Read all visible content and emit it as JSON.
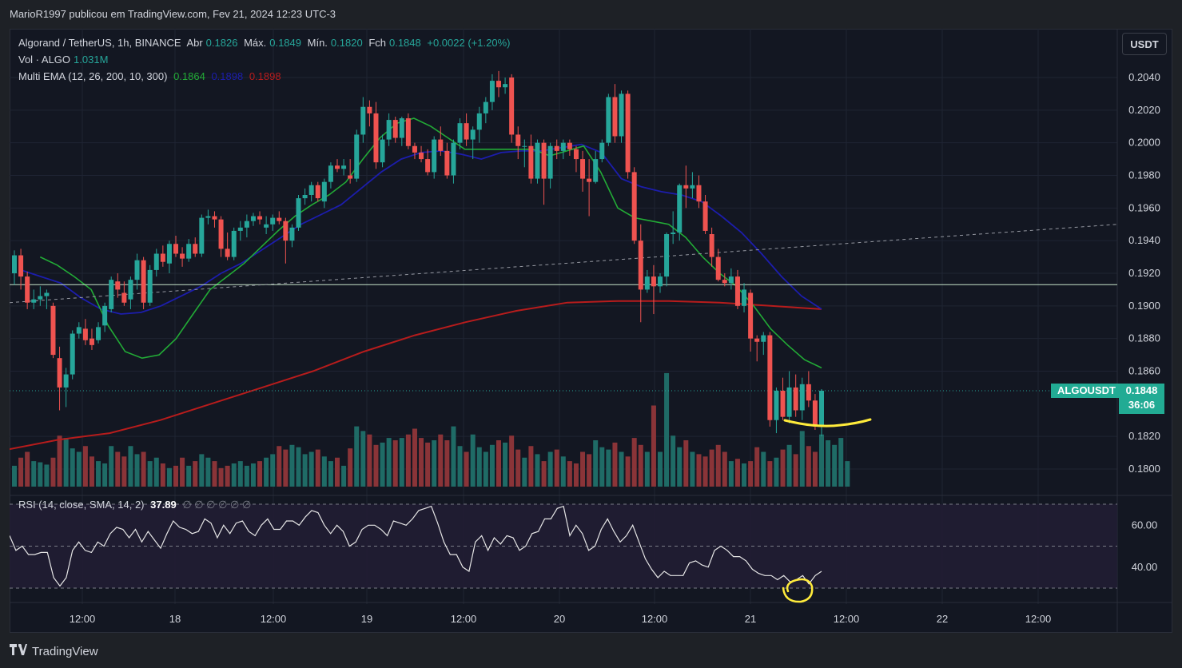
{
  "header": {
    "publisher": "MarioR1997 publicou em TradingView.com, Fev 21, 2024 12:23 UTC-3"
  },
  "legend": {
    "symbol": "Algorand / TetherUS, 1h, BINANCE",
    "open_label": "Abr",
    "open": "0.1826",
    "high_label": "Máx.",
    "high": "0.1849",
    "low_label": "Mín.",
    "low": "0.1820",
    "close_label": "Fch",
    "close": "0.1848",
    "change": "+0.0022 (+1.20%)",
    "vol_label": "Vol · ALGO",
    "vol": "1.031M",
    "ema_label": "Multi EMA (12, 26, 200, 10, 300)",
    "ema_values": [
      "0.1864",
      "0.1898",
      "0.1898"
    ],
    "rsi_label": "RSI (14, close, SMA, 14, 2)",
    "rsi_value": "37.89",
    "rsi_extra": "∅ ∅ ∅ ∅ ∅ ∅"
  },
  "currency": "USDT",
  "price_label": {
    "ticker": "ALGOUSDT",
    "price": "0.1848",
    "countdown": "36:06"
  },
  "footer": {
    "brand": "TradingView"
  },
  "colors": {
    "up": "#26a69a",
    "down": "#ef5350",
    "ema_fast": "#22ab36",
    "ema_mid": "#1c1dac",
    "ema_slow": "#b71c1c",
    "marker": "#ffeb3b"
  },
  "chart_data": {
    "type": "candlestick",
    "timeframe": "1h",
    "ylim": [
      0.179,
      0.205
    ],
    "y_ticks": [
      "0.2040",
      "0.2020",
      "0.2000",
      "0.1980",
      "0.1960",
      "0.1940",
      "0.1920",
      "0.1900",
      "0.1880",
      "0.1860",
      "0.1820",
      "0.1800"
    ],
    "x_ticks": [
      "12:00",
      "18",
      "12:00",
      "19",
      "12:00",
      "20",
      "12:00",
      "21",
      "12:00",
      "22",
      "12:00"
    ],
    "candles": [
      {
        "o": 0.192,
        "h": 0.1934,
        "l": 0.1913,
        "c": 0.1931
      },
      {
        "o": 0.1931,
        "h": 0.1935,
        "l": 0.191,
        "c": 0.1918
      },
      {
        "o": 0.1918,
        "h": 0.1921,
        "l": 0.1898,
        "c": 0.1902
      },
      {
        "o": 0.1902,
        "h": 0.191,
        "l": 0.1898,
        "c": 0.1904
      },
      {
        "o": 0.1904,
        "h": 0.1912,
        "l": 0.19,
        "c": 0.1906
      },
      {
        "o": 0.1906,
        "h": 0.191,
        "l": 0.1898,
        "c": 0.1908
      },
      {
        "o": 0.19,
        "h": 0.1902,
        "l": 0.1868,
        "c": 0.187
      },
      {
        "o": 0.1868,
        "h": 0.1875,
        "l": 0.1836,
        "c": 0.185
      },
      {
        "o": 0.185,
        "h": 0.1862,
        "l": 0.1838,
        "c": 0.1858
      },
      {
        "o": 0.1858,
        "h": 0.1885,
        "l": 0.1855,
        "c": 0.1883
      },
      {
        "o": 0.1883,
        "h": 0.189,
        "l": 0.188,
        "c": 0.1887
      },
      {
        "o": 0.1886,
        "h": 0.1892,
        "l": 0.1876,
        "c": 0.1879
      },
      {
        "o": 0.188,
        "h": 0.1886,
        "l": 0.1873,
        "c": 0.1876
      },
      {
        "o": 0.1879,
        "h": 0.189,
        "l": 0.1877,
        "c": 0.1887
      },
      {
        "o": 0.1888,
        "h": 0.1902,
        "l": 0.1884,
        "c": 0.19
      },
      {
        "o": 0.1898,
        "h": 0.1918,
        "l": 0.1896,
        "c": 0.1916
      },
      {
        "o": 0.1915,
        "h": 0.192,
        "l": 0.1905,
        "c": 0.191
      },
      {
        "o": 0.1908,
        "h": 0.1915,
        "l": 0.19,
        "c": 0.1902
      },
      {
        "o": 0.1904,
        "h": 0.1918,
        "l": 0.1898,
        "c": 0.1916
      },
      {
        "o": 0.1916,
        "h": 0.1932,
        "l": 0.191,
        "c": 0.1928
      },
      {
        "o": 0.1928,
        "h": 0.193,
        "l": 0.1898,
        "c": 0.1902
      },
      {
        "o": 0.1902,
        "h": 0.1925,
        "l": 0.19,
        "c": 0.1922
      },
      {
        "o": 0.1922,
        "h": 0.1935,
        "l": 0.1918,
        "c": 0.1932
      },
      {
        "o": 0.1932,
        "h": 0.1937,
        "l": 0.1924,
        "c": 0.1927
      },
      {
        "o": 0.1926,
        "h": 0.194,
        "l": 0.192,
        "c": 0.1938
      },
      {
        "o": 0.1938,
        "h": 0.1943,
        "l": 0.193,
        "c": 0.1932
      },
      {
        "o": 0.1932,
        "h": 0.1936,
        "l": 0.1924,
        "c": 0.1929
      },
      {
        "o": 0.1929,
        "h": 0.1941,
        "l": 0.1927,
        "c": 0.1938
      },
      {
        "o": 0.1938,
        "h": 0.1942,
        "l": 0.193,
        "c": 0.1932
      },
      {
        "o": 0.1932,
        "h": 0.1956,
        "l": 0.193,
        "c": 0.1954
      },
      {
        "o": 0.1954,
        "h": 0.1959,
        "l": 0.195,
        "c": 0.1955
      },
      {
        "o": 0.1955,
        "h": 0.1958,
        "l": 0.1948,
        "c": 0.1953
      },
      {
        "o": 0.1953,
        "h": 0.1955,
        "l": 0.193,
        "c": 0.1935
      },
      {
        "o": 0.1935,
        "h": 0.1945,
        "l": 0.1928,
        "c": 0.193
      },
      {
        "o": 0.193,
        "h": 0.1948,
        "l": 0.1928,
        "c": 0.1946
      },
      {
        "o": 0.1946,
        "h": 0.1952,
        "l": 0.194,
        "c": 0.1948
      },
      {
        "o": 0.1948,
        "h": 0.1956,
        "l": 0.1942,
        "c": 0.1952
      },
      {
        "o": 0.1952,
        "h": 0.1957,
        "l": 0.1949,
        "c": 0.1955
      },
      {
        "o": 0.1955,
        "h": 0.1958,
        "l": 0.195,
        "c": 0.1953
      },
      {
        "o": 0.1948,
        "h": 0.1955,
        "l": 0.1944,
        "c": 0.195
      },
      {
        "o": 0.195,
        "h": 0.1956,
        "l": 0.1946,
        "c": 0.1954
      },
      {
        "o": 0.1954,
        "h": 0.1958,
        "l": 0.195,
        "c": 0.1952
      },
      {
        "o": 0.1952,
        "h": 0.1954,
        "l": 0.1926,
        "c": 0.194
      },
      {
        "o": 0.194,
        "h": 0.195,
        "l": 0.1936,
        "c": 0.1948
      },
      {
        "o": 0.1948,
        "h": 0.1968,
        "l": 0.1946,
        "c": 0.1966
      },
      {
        "o": 0.1966,
        "h": 0.1972,
        "l": 0.1962,
        "c": 0.1968
      },
      {
        "o": 0.1968,
        "h": 0.1976,
        "l": 0.1964,
        "c": 0.1974
      },
      {
        "o": 0.1974,
        "h": 0.1976,
        "l": 0.1964,
        "c": 0.1966
      },
      {
        "o": 0.1964,
        "h": 0.1978,
        "l": 0.196,
        "c": 0.1976
      },
      {
        "o": 0.1976,
        "h": 0.1988,
        "l": 0.1972,
        "c": 0.1986
      },
      {
        "o": 0.1986,
        "h": 0.199,
        "l": 0.1982,
        "c": 0.1984
      },
      {
        "o": 0.1984,
        "h": 0.199,
        "l": 0.198,
        "c": 0.1986
      },
      {
        "o": 0.198,
        "h": 0.199,
        "l": 0.1975,
        "c": 0.1978
      },
      {
        "o": 0.1978,
        "h": 0.2008,
        "l": 0.1976,
        "c": 0.2005
      },
      {
        "o": 0.2005,
        "h": 0.2028,
        "l": 0.2,
        "c": 0.2022
      },
      {
        "o": 0.2022,
        "h": 0.2026,
        "l": 0.201,
        "c": 0.2018
      },
      {
        "o": 0.2018,
        "h": 0.2025,
        "l": 0.1984,
        "c": 0.1988
      },
      {
        "o": 0.1988,
        "h": 0.2005,
        "l": 0.1985,
        "c": 0.2002
      },
      {
        "o": 0.2002,
        "h": 0.2018,
        "l": 0.1998,
        "c": 0.2014
      },
      {
        "o": 0.2014,
        "h": 0.2016,
        "l": 0.2,
        "c": 0.2003
      },
      {
        "o": 0.2003,
        "h": 0.2016,
        "l": 0.1998,
        "c": 0.2015
      },
      {
        "o": 0.2015,
        "h": 0.2018,
        "l": 0.1996,
        "c": 0.1998
      },
      {
        "o": 0.1998,
        "h": 0.2,
        "l": 0.199,
        "c": 0.1994
      },
      {
        "o": 0.1994,
        "h": 0.1998,
        "l": 0.1988,
        "c": 0.199
      },
      {
        "o": 0.199,
        "h": 0.1996,
        "l": 0.198,
        "c": 0.1982
      },
      {
        "o": 0.1982,
        "h": 0.2004,
        "l": 0.1978,
        "c": 0.2002
      },
      {
        "o": 0.2002,
        "h": 0.201,
        "l": 0.1992,
        "c": 0.1995
      },
      {
        "o": 0.1995,
        "h": 0.2,
        "l": 0.1978,
        "c": 0.198
      },
      {
        "o": 0.198,
        "h": 0.2002,
        "l": 0.1975,
        "c": 0.2
      },
      {
        "o": 0.2,
        "h": 0.2015,
        "l": 0.1996,
        "c": 0.2012
      },
      {
        "o": 0.2012,
        "h": 0.2018,
        "l": 0.1998,
        "c": 0.2002
      },
      {
        "o": 0.2002,
        "h": 0.201,
        "l": 0.199,
        "c": 0.2008
      },
      {
        "o": 0.2008,
        "h": 0.2022,
        "l": 0.2,
        "c": 0.2018
      },
      {
        "o": 0.2018,
        "h": 0.2028,
        "l": 0.2012,
        "c": 0.2025
      },
      {
        "o": 0.2025,
        "h": 0.2042,
        "l": 0.202,
        "c": 0.2038
      },
      {
        "o": 0.2038,
        "h": 0.2044,
        "l": 0.2028,
        "c": 0.2034
      },
      {
        "o": 0.2034,
        "h": 0.204,
        "l": 0.203,
        "c": 0.2036
      },
      {
        "o": 0.204,
        "h": 0.2042,
        "l": 0.2,
        "c": 0.2005
      },
      {
        "o": 0.2005,
        "h": 0.201,
        "l": 0.199,
        "c": 0.1998
      },
      {
        "o": 0.1998,
        "h": 0.2002,
        "l": 0.1985,
        "c": 0.1998
      },
      {
        "o": 0.1998,
        "h": 0.2005,
        "l": 0.1975,
        "c": 0.1978
      },
      {
        "o": 0.1978,
        "h": 0.2002,
        "l": 0.1975,
        "c": 0.2
      },
      {
        "o": 0.2,
        "h": 0.2002,
        "l": 0.1962,
        "c": 0.1978
      },
      {
        "o": 0.1978,
        "h": 0.2,
        "l": 0.1972,
        "c": 0.1998
      },
      {
        "o": 0.1998,
        "h": 0.2002,
        "l": 0.199,
        "c": 0.1995
      },
      {
        "o": 0.1995,
        "h": 0.2002,
        "l": 0.199,
        "c": 0.2
      },
      {
        "o": 0.2,
        "h": 0.2002,
        "l": 0.1992,
        "c": 0.1996
      },
      {
        "o": 0.1996,
        "h": 0.1998,
        "l": 0.1982,
        "c": 0.199
      },
      {
        "o": 0.199,
        "h": 0.1995,
        "l": 0.197,
        "c": 0.1978
      },
      {
        "o": 0.1978,
        "h": 0.199,
        "l": 0.1955,
        "c": 0.1976
      },
      {
        "o": 0.1976,
        "h": 0.1995,
        "l": 0.1975,
        "c": 0.199
      },
      {
        "o": 0.199,
        "h": 0.2002,
        "l": 0.1988,
        "c": 0.2
      },
      {
        "o": 0.2,
        "h": 0.203,
        "l": 0.1998,
        "c": 0.2028
      },
      {
        "o": 0.2028,
        "h": 0.2036,
        "l": 0.2,
        "c": 0.2004
      },
      {
        "o": 0.2004,
        "h": 0.2032,
        "l": 0.2,
        "c": 0.203
      },
      {
        "o": 0.203,
        "h": 0.2032,
        "l": 0.1978,
        "c": 0.1982
      },
      {
        "o": 0.1982,
        "h": 0.1985,
        "l": 0.1938,
        "c": 0.194
      },
      {
        "o": 0.194,
        "h": 0.195,
        "l": 0.189,
        "c": 0.191
      },
      {
        "o": 0.191,
        "h": 0.1922,
        "l": 0.1908,
        "c": 0.1918
      },
      {
        "o": 0.1918,
        "h": 0.1925,
        "l": 0.1895,
        "c": 0.1912
      },
      {
        "o": 0.1912,
        "h": 0.192,
        "l": 0.1908,
        "c": 0.1918
      },
      {
        "o": 0.1918,
        "h": 0.1945,
        "l": 0.1912,
        "c": 0.1944
      },
      {
        "o": 0.1944,
        "h": 0.1958,
        "l": 0.1938,
        "c": 0.1945
      },
      {
        "o": 0.1945,
        "h": 0.1975,
        "l": 0.194,
        "c": 0.1974
      },
      {
        "o": 0.1974,
        "h": 0.1986,
        "l": 0.196,
        "c": 0.1972
      },
      {
        "o": 0.1972,
        "h": 0.1982,
        "l": 0.1966,
        "c": 0.1974
      },
      {
        "o": 0.1974,
        "h": 0.198,
        "l": 0.196,
        "c": 0.1964
      },
      {
        "o": 0.1964,
        "h": 0.1968,
        "l": 0.1944,
        "c": 0.1946
      },
      {
        "o": 0.1944,
        "h": 0.1948,
        "l": 0.1924,
        "c": 0.193
      },
      {
        "o": 0.193,
        "h": 0.1935,
        "l": 0.1915,
        "c": 0.1916
      },
      {
        "o": 0.1916,
        "h": 0.192,
        "l": 0.1912,
        "c": 0.1914
      },
      {
        "o": 0.1914,
        "h": 0.1923,
        "l": 0.191,
        "c": 0.1918
      },
      {
        "o": 0.1918,
        "h": 0.1922,
        "l": 0.1898,
        "c": 0.19
      },
      {
        "o": 0.19,
        "h": 0.1914,
        "l": 0.1896,
        "c": 0.191
      },
      {
        "o": 0.1908,
        "h": 0.191,
        "l": 0.1872,
        "c": 0.188
      },
      {
        "o": 0.188,
        "h": 0.1882,
        "l": 0.1866,
        "c": 0.1878
      },
      {
        "o": 0.1878,
        "h": 0.1884,
        "l": 0.187,
        "c": 0.1882
      },
      {
        "o": 0.1882,
        "h": 0.1884,
        "l": 0.1826,
        "c": 0.183
      },
      {
        "o": 0.183,
        "h": 0.185,
        "l": 0.1822,
        "c": 0.1848
      },
      {
        "o": 0.1848,
        "h": 0.1856,
        "l": 0.183,
        "c": 0.1832
      },
      {
        "o": 0.1832,
        "h": 0.186,
        "l": 0.1828,
        "c": 0.185
      },
      {
        "o": 0.185,
        "h": 0.1858,
        "l": 0.1832,
        "c": 0.1836
      },
      {
        "o": 0.1836,
        "h": 0.1856,
        "l": 0.183,
        "c": 0.1852
      },
      {
        "o": 0.1852,
        "h": 0.186,
        "l": 0.1838,
        "c": 0.1842
      },
      {
        "o": 0.1842,
        "h": 0.1846,
        "l": 0.1824,
        "c": 0.1826
      },
      {
        "o": 0.1826,
        "h": 0.1849,
        "l": 0.182,
        "c": 0.1848
      }
    ],
    "volume": [
      0.18,
      0.25,
      0.3,
      0.22,
      0.21,
      0.19,
      0.25,
      0.44,
      0.42,
      0.33,
      0.3,
      0.35,
      0.26,
      0.22,
      0.2,
      0.35,
      0.3,
      0.26,
      0.35,
      0.28,
      0.3,
      0.22,
      0.25,
      0.2,
      0.16,
      0.18,
      0.25,
      0.18,
      0.22,
      0.28,
      0.25,
      0.22,
      0.16,
      0.18,
      0.2,
      0.22,
      0.18,
      0.2,
      0.22,
      0.25,
      0.28,
      0.35,
      0.32,
      0.36,
      0.34,
      0.28,
      0.3,
      0.32,
      0.26,
      0.22,
      0.25,
      0.18,
      0.33,
      0.52,
      0.48,
      0.45,
      0.36,
      0.38,
      0.42,
      0.4,
      0.42,
      0.45,
      0.5,
      0.42,
      0.38,
      0.4,
      0.45,
      0.4,
      0.52,
      0.35,
      0.3,
      0.45,
      0.34,
      0.3,
      0.36,
      0.4,
      0.38,
      0.44,
      0.32,
      0.25,
      0.35,
      0.28,
      0.22,
      0.3,
      0.32,
      0.26,
      0.22,
      0.2,
      0.3,
      0.28,
      0.4,
      0.34,
      0.32,
      0.38,
      0.3,
      0.26,
      0.42,
      0.36,
      0.3,
      0.7,
      0.3,
      0.98,
      0.44,
      0.34,
      0.4,
      0.3,
      0.28,
      0.26,
      0.32,
      0.36,
      0.3,
      0.22,
      0.24,
      0.2,
      0.22,
      0.34,
      0.3,
      0.22,
      0.25,
      0.32,
      0.36,
      0.28,
      0.48,
      0.35,
      0.3,
      0.45,
      0.4,
      0.36,
      0.42,
      0.22
    ],
    "ema_fast": [
      0.193,
      0.1925,
      0.1918,
      0.191,
      0.1888,
      0.1872,
      0.1868,
      0.187,
      0.188,
      0.1895,
      0.191,
      0.1918,
      0.1926,
      0.1936,
      0.1946,
      0.1955,
      0.1962,
      0.1968,
      0.1976,
      0.199,
      0.2003,
      0.2012,
      0.2015,
      0.201,
      0.2003,
      0.1996,
      0.1996,
      0.1996,
      0.1996,
      0.1996,
      0.1992,
      0.1995,
      0.1998,
      0.1982,
      0.196,
      0.1954,
      0.1952,
      0.195,
      0.1942,
      0.193,
      0.192,
      0.1912,
      0.19,
      0.1886,
      0.1876,
      0.1867,
      0.1862
    ],
    "ema_mid": [
      0.1922,
      0.1918,
      0.1914,
      0.1905,
      0.1898,
      0.1895,
      0.1896,
      0.19,
      0.1906,
      0.1912,
      0.192,
      0.1926,
      0.1934,
      0.1942,
      0.195,
      0.1956,
      0.1962,
      0.1972,
      0.1982,
      0.199,
      0.1994,
      0.1995,
      0.1993,
      0.199,
      0.1994,
      0.1995,
      0.1995,
      0.1997,
      0.1999,
      0.1994,
      0.1978,
      0.1973,
      0.197,
      0.1968,
      0.1964,
      0.1955,
      0.1945,
      0.1932,
      0.1918,
      0.1906,
      0.1898
    ],
    "ema_slow": [
      0.1812,
      0.1818,
      0.1822,
      0.183,
      0.184,
      0.185,
      0.186,
      0.1872,
      0.1882,
      0.189,
      0.1897,
      0.1902,
      0.1903,
      0.1903,
      0.1902,
      0.19,
      0.1898
    ],
    "horizontal_line": 0.1913,
    "current_price_line": 0.1848,
    "trend_line": [
      0.1902,
      0.195
    ],
    "rsi": {
      "ylim": [
        25,
        75
      ],
      "ticks": [
        "60.00",
        "40.00"
      ],
      "bands": [
        70,
        50,
        30
      ],
      "values": [
        55,
        48,
        50,
        46,
        46,
        47,
        47,
        35,
        31,
        35,
        48,
        52,
        48,
        47,
        52,
        50,
        56,
        59,
        58,
        54,
        58,
        52,
        57,
        53,
        49,
        56,
        62,
        59,
        58,
        56,
        57,
        63,
        61,
        54,
        60,
        56,
        61,
        62,
        57,
        55,
        60,
        63,
        58,
        58,
        62,
        62,
        60,
        64,
        67,
        66,
        60,
        56,
        60,
        57,
        50,
        52,
        58,
        60,
        60,
        58,
        55,
        62,
        61,
        60,
        63,
        67,
        68,
        69,
        61,
        52,
        46,
        46,
        40,
        38,
        52,
        55,
        48,
        54,
        51,
        55,
        54,
        48,
        50,
        56,
        57,
        63,
        63,
        68,
        69,
        55,
        60,
        56,
        48,
        50,
        58,
        63,
        57,
        52,
        55,
        60,
        52,
        44,
        39,
        35,
        38,
        36,
        36,
        36,
        42,
        43,
        41,
        40,
        48,
        50,
        48,
        45,
        45,
        43,
        39,
        37,
        36,
        36,
        34,
        36,
        33,
        34,
        36,
        32,
        36,
        38
      ]
    }
  }
}
